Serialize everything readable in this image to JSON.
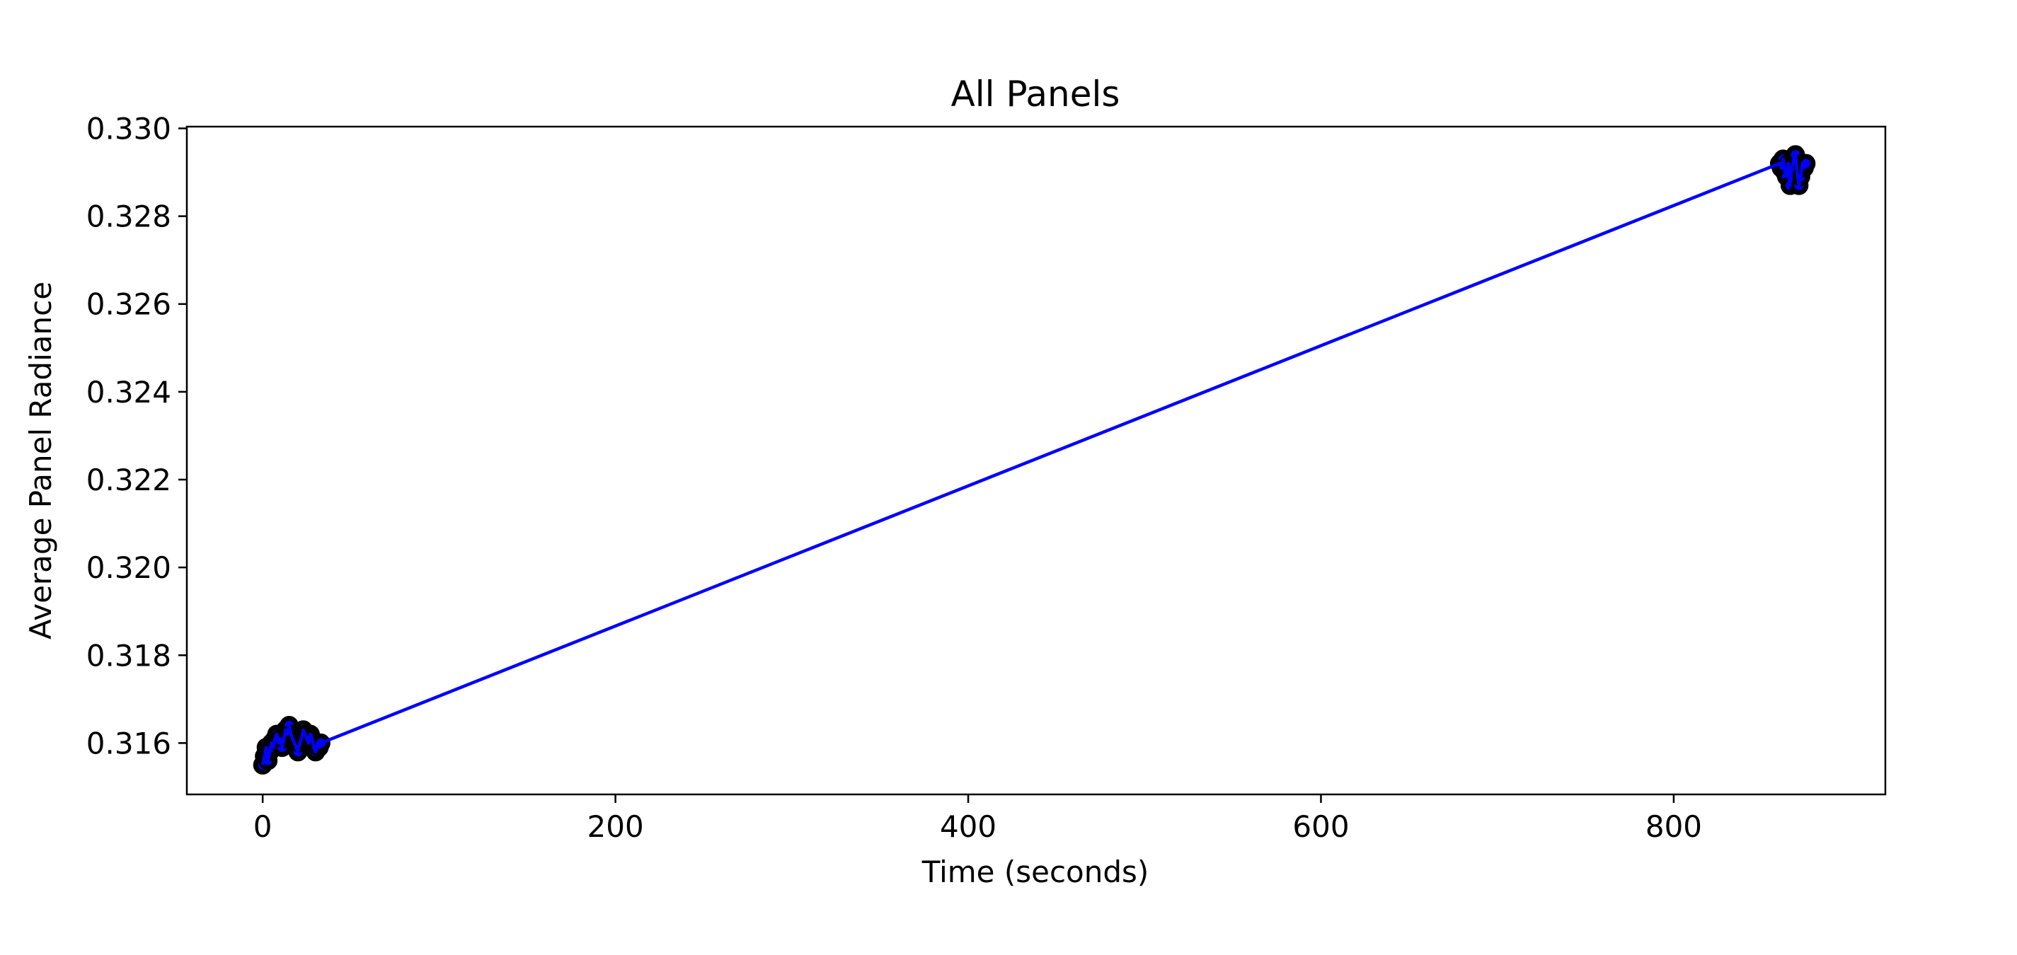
{
  "chart_data": {
    "type": "line",
    "title": "All Panels",
    "xlabel": "Time (seconds)",
    "ylabel": "Average Panel Radiance",
    "xlim": [
      -43,
      920
    ],
    "ylim": [
      0.31483,
      0.33004
    ],
    "xticks": [
      0,
      200,
      400,
      600,
      800
    ],
    "yticks": [
      0.316,
      0.318,
      0.32,
      0.322,
      0.324,
      0.326,
      0.328,
      0.33
    ],
    "xtick_labels": [
      "0",
      "200",
      "400",
      "600",
      "800"
    ],
    "ytick_labels": [
      "0.316",
      "0.318",
      "0.320",
      "0.322",
      "0.324",
      "0.326",
      "0.328",
      "0.330"
    ],
    "grid": false,
    "line_color": "#0000ff",
    "marker_edge_color": "#000000",
    "series": [
      {
        "x": [
          0,
          1,
          2,
          3,
          4,
          5,
          6,
          7,
          8,
          9,
          10,
          11,
          12,
          13,
          14,
          15,
          16,
          17,
          18,
          19,
          20,
          21,
          22,
          23,
          24,
          25,
          26,
          27,
          28,
          29,
          30,
          31,
          32,
          33,
          860,
          861,
          862,
          863,
          864,
          865,
          866,
          867,
          868,
          869,
          870,
          871,
          872,
          873,
          874,
          875
        ],
        "y": [
          0.3155,
          0.3157,
          0.3159,
          0.3156,
          0.3158,
          0.316,
          0.3159,
          0.3161,
          0.3162,
          0.316,
          0.3161,
          0.3159,
          0.3161,
          0.3163,
          0.3162,
          0.3164,
          0.3162,
          0.3161,
          0.316,
          0.3159,
          0.3158,
          0.316,
          0.3161,
          0.3163,
          0.3162,
          0.3161,
          0.316,
          0.3162,
          0.3161,
          0.3159,
          0.3158,
          0.316,
          0.3159,
          0.316,
          0.3292,
          0.3291,
          0.3293,
          0.329,
          0.3289,
          0.3292,
          0.3287,
          0.3291,
          0.3293,
          0.3294,
          0.329,
          0.3287,
          0.3289,
          0.3292,
          0.3291,
          0.3292
        ]
      }
    ]
  }
}
